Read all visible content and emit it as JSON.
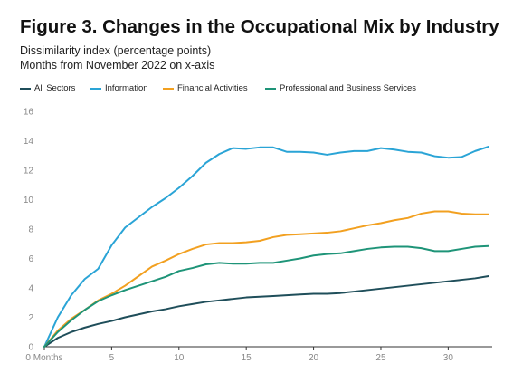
{
  "chart_data": {
    "type": "line",
    "title": "Figure 3. Changes in the Occupational Mix by Industry",
    "subtitle_lines": [
      "Dissimilarity index (percentage points)",
      "Months from November 2022 on x-axis"
    ],
    "xlabel": "",
    "ylabel": "",
    "xlim": [
      0,
      33
    ],
    "ylim": [
      0,
      16
    ],
    "y_ticks": [
      "0",
      "2",
      "4",
      "6",
      "8",
      "10",
      "12",
      "14",
      "16"
    ],
    "x_ticks": [
      "0 Months",
      "5",
      "10",
      "15",
      "20",
      "25",
      "30"
    ],
    "x_tick_values": [
      0,
      5,
      10,
      15,
      20,
      25,
      30
    ],
    "y_tick_values": [
      0,
      2,
      4,
      6,
      8,
      10,
      12,
      14,
      16
    ],
    "grid": false,
    "legend_position": "top",
    "x": [
      0,
      1,
      2,
      3,
      4,
      5,
      6,
      7,
      8,
      9,
      10,
      11,
      12,
      13,
      14,
      15,
      16,
      17,
      18,
      19,
      20,
      21,
      22,
      23,
      24,
      25,
      26,
      27,
      28,
      29,
      30,
      31,
      32,
      33
    ],
    "series": [
      {
        "name": "All Sectors",
        "color": "#1f4e5a",
        "values": [
          0,
          0.6,
          1.0,
          1.3,
          1.55,
          1.75,
          2.0,
          2.2,
          2.4,
          2.55,
          2.75,
          2.9,
          3.05,
          3.15,
          3.25,
          3.35,
          3.4,
          3.45,
          3.5,
          3.55,
          3.6,
          3.6,
          3.65,
          3.75,
          3.85,
          3.95,
          4.05,
          4.15,
          4.25,
          4.35,
          4.45,
          4.55,
          4.65,
          4.8
        ]
      },
      {
        "name": "Information",
        "color": "#2aa4d6",
        "values": [
          0,
          2.0,
          3.5,
          4.6,
          5.3,
          6.9,
          8.1,
          8.8,
          9.5,
          10.1,
          10.8,
          11.6,
          12.5,
          13.1,
          13.5,
          13.45,
          13.55,
          13.55,
          13.25,
          13.25,
          13.2,
          13.05,
          13.2,
          13.3,
          13.3,
          13.5,
          13.4,
          13.25,
          13.2,
          12.95,
          12.85,
          12.9,
          13.3,
          13.6
        ]
      },
      {
        "name": "Financial Activities",
        "color": "#f2a020",
        "values": [
          0,
          1.1,
          1.9,
          2.5,
          3.15,
          3.6,
          4.15,
          4.8,
          5.45,
          5.85,
          6.3,
          6.65,
          6.95,
          7.05,
          7.05,
          7.1,
          7.2,
          7.45,
          7.6,
          7.65,
          7.7,
          7.75,
          7.85,
          8.05,
          8.25,
          8.4,
          8.6,
          8.75,
          9.05,
          9.2,
          9.2,
          9.05,
          9.0,
          9.0
        ]
      },
      {
        "name": "Professional and Business Services",
        "color": "#1e9478",
        "values": [
          0,
          1.0,
          1.8,
          2.5,
          3.1,
          3.5,
          3.85,
          4.15,
          4.45,
          4.75,
          5.15,
          5.35,
          5.6,
          5.7,
          5.65,
          5.65,
          5.7,
          5.7,
          5.85,
          6.0,
          6.2,
          6.3,
          6.35,
          6.5,
          6.65,
          6.75,
          6.8,
          6.8,
          6.7,
          6.5,
          6.5,
          6.65,
          6.8,
          6.85
        ]
      }
    ]
  }
}
